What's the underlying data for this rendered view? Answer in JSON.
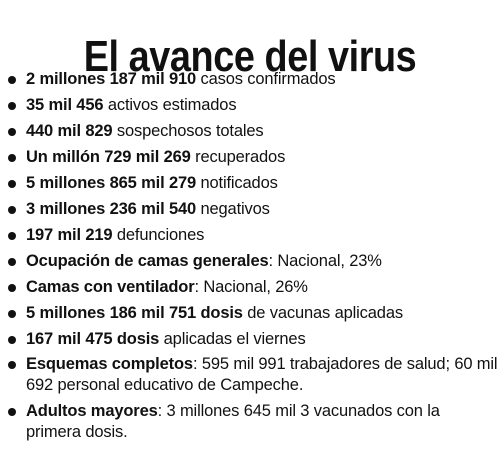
{
  "title": "El avance del virus",
  "items": [
    {
      "bold": "2 millones 187 mil 910",
      "text": " casos confirmados"
    },
    {
      "bold": "35 mil 456",
      "text": " activos estimados"
    },
    {
      "bold": "440 mil 829",
      "text": " sospechosos totales"
    },
    {
      "bold": "Un millón 729 mil 269",
      "text": " recuperados"
    },
    {
      "bold": "5 millones 865 mil 279",
      "text": " notificados"
    },
    {
      "bold": "3 millones 236 mil 540",
      "text": " negativos"
    },
    {
      "bold": "197 mil 219",
      "text": " defunciones"
    },
    {
      "bold": "Ocupación de camas generales",
      "text": ": Nacional, 23%"
    },
    {
      "bold": "Camas con ventilador",
      "text": ": Nacional, 26%"
    },
    {
      "bold": "5 millones 186 mil 751 dosis",
      "text": " de vacunas aplicadas"
    },
    {
      "bold": "167 mil 475 dosis",
      "text": " aplicadas el viernes"
    },
    {
      "bold": "Esquemas completos",
      "text": ": 595 mil 991 trabajadores de salud; 60 mil 692 personal educativo de Campeche."
    },
    {
      "bold": "Adultos mayores",
      "text": ": 3 millones 645 mil 3 vacunados con la primera dosis."
    }
  ]
}
